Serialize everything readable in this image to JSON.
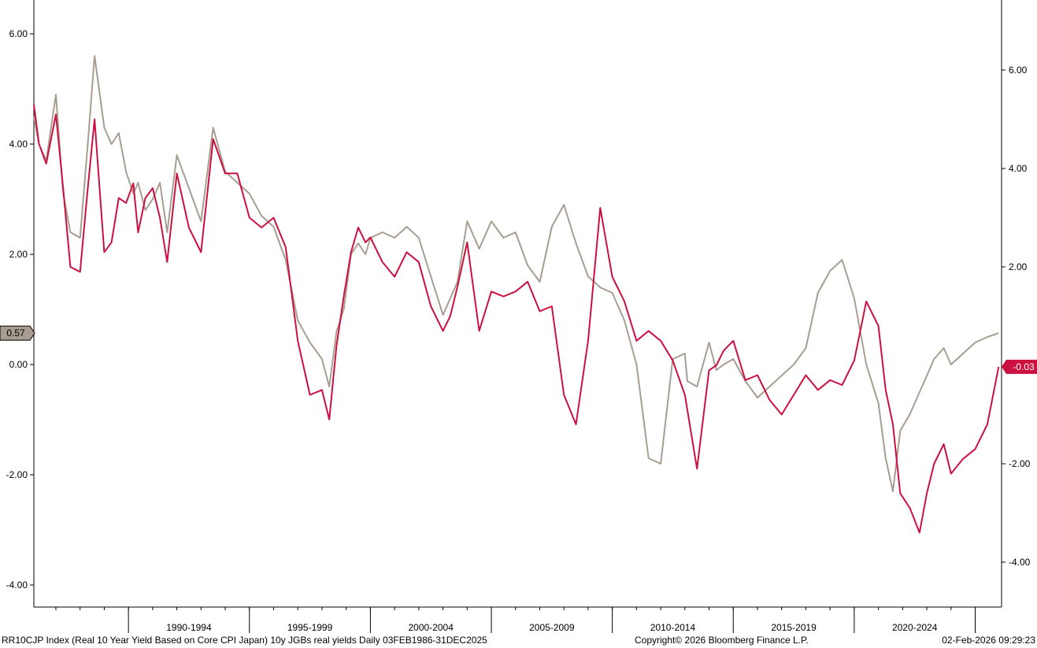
{
  "chart_data": {
    "type": "line",
    "title": "RR10CJP Index (Real 10 Year Yield Based on Core CPI Japan) 10y JGBs real yields Daily 03FEB1986-31DEC2025",
    "x_range": [
      "1986-02-03",
      "2026-02-02"
    ],
    "x_period_labels": [
      "1990-1994",
      "1995-1999",
      "2000-2004",
      "2005-2009",
      "2010-2014",
      "2015-2019",
      "2020-2024"
    ],
    "left_axis": {
      "ylim": [
        -4.3,
        6.6
      ],
      "ticks": [
        "6.00",
        "4.00",
        "2.00",
        "0.00",
        "-2.00",
        "-4.00"
      ]
    },
    "right_axis": {
      "ylim": [
        -4.0,
        7.5
      ],
      "ticks": [
        "6.00",
        "4.00",
        "2.00",
        "-2.00",
        "-4.00"
      ]
    },
    "grid": false,
    "series": [
      {
        "axis": "left",
        "color": "#a89d91",
        "last_value_label": "0.57",
        "last_value": 0.57,
        "x": [
          1986.09,
          1986.3,
          1986.6,
          1987.0,
          1987.3,
          1987.6,
          1988.0,
          1988.3,
          1988.6,
          1989.0,
          1989.3,
          1989.6,
          1989.9,
          1990.2,
          1990.4,
          1990.7,
          1991.0,
          1991.3,
          1991.6,
          1992.0,
          1992.5,
          1993.0,
          1993.5,
          1994.0,
          1994.5,
          1995.0,
          1995.5,
          1996.0,
          1996.5,
          1997.0,
          1997.5,
          1998.0,
          1998.3,
          1998.6,
          1998.9,
          1999.2,
          1999.5,
          1999.8,
          2000.0,
          2000.5,
          2001.0,
          2001.5,
          2002.0,
          2002.5,
          2003.0,
          2003.3,
          2003.6,
          2004.0,
          2004.5,
          2005.0,
          2005.5,
          2006.0,
          2006.5,
          2007.0,
          2007.5,
          2008.0,
          2008.5,
          2009.0,
          2009.5,
          2010.0,
          2010.5,
          2011.0,
          2011.5,
          2012.0,
          2012.5,
          2013.0,
          2013.1,
          2013.5,
          2014.0,
          2014.3,
          2014.6,
          2015.0,
          2015.5,
          2016.0,
          2016.5,
          2017.0,
          2017.5,
          2018.0,
          2018.5,
          2019.0,
          2019.5,
          2020.0,
          2020.5,
          2021.0,
          2021.3,
          2021.6,
          2021.9,
          2022.3,
          2022.7,
          2023.0,
          2023.3,
          2023.7,
          2024.0,
          2024.5,
          2025.0,
          2025.5,
          2025.97
        ],
        "values": [
          4.5,
          4.0,
          3.7,
          4.9,
          3.1,
          2.4,
          2.3,
          3.9,
          5.6,
          4.3,
          4.0,
          4.2,
          3.5,
          3.1,
          3.3,
          2.8,
          3.0,
          3.3,
          2.4,
          3.8,
          3.2,
          2.6,
          4.3,
          3.5,
          3.3,
          3.1,
          2.7,
          2.5,
          1.9,
          0.8,
          0.4,
          0.1,
          -0.4,
          0.6,
          1.0,
          2.0,
          2.2,
          2.0,
          2.3,
          2.4,
          2.3,
          2.5,
          2.3,
          1.6,
          0.9,
          1.2,
          1.5,
          2.6,
          2.1,
          2.6,
          2.3,
          2.4,
          1.8,
          1.5,
          2.5,
          2.9,
          2.2,
          1.6,
          1.4,
          1.3,
          0.8,
          0.0,
          -1.7,
          -1.8,
          0.1,
          0.2,
          -0.3,
          -0.4,
          0.4,
          -0.1,
          0.0,
          0.1,
          -0.3,
          -0.6,
          -0.4,
          -0.2,
          0.0,
          0.3,
          1.3,
          1.7,
          1.9,
          1.2,
          0.0,
          -0.7,
          -1.7,
          -2.3,
          -1.2,
          -0.9,
          -0.5,
          -0.2,
          0.1,
          0.3,
          0.0,
          0.2,
          0.4,
          0.5,
          0.57
        ]
      },
      {
        "axis": "right",
        "color": "#cc1140",
        "last_value_label": "-0.03",
        "last_value": -0.03,
        "x": [
          1986.09,
          1986.3,
          1986.6,
          1987.0,
          1987.3,
          1987.6,
          1988.0,
          1988.3,
          1988.6,
          1989.0,
          1989.3,
          1989.6,
          1989.9,
          1990.2,
          1990.4,
          1990.7,
          1991.0,
          1991.3,
          1991.6,
          1992.0,
          1992.5,
          1993.0,
          1993.5,
          1994.0,
          1994.5,
          1995.0,
          1995.5,
          1996.0,
          1996.5,
          1997.0,
          1997.5,
          1998.0,
          1998.3,
          1998.6,
          1998.9,
          1999.2,
          1999.5,
          1999.8,
          2000.0,
          2000.5,
          2001.0,
          2001.5,
          2002.0,
          2002.5,
          2003.0,
          2003.3,
          2003.6,
          2004.0,
          2004.5,
          2005.0,
          2005.5,
          2006.0,
          2006.5,
          2007.0,
          2007.5,
          2008.0,
          2008.5,
          2009.0,
          2009.5,
          2010.0,
          2010.5,
          2011.0,
          2011.5,
          2012.0,
          2012.5,
          2013.0,
          2013.1,
          2013.5,
          2014.0,
          2014.3,
          2014.6,
          2015.0,
          2015.5,
          2016.0,
          2016.5,
          2017.0,
          2017.5,
          2018.0,
          2018.5,
          2019.0,
          2019.5,
          2020.0,
          2020.5,
          2021.0,
          2021.3,
          2021.6,
          2021.9,
          2022.3,
          2022.7,
          2023.0,
          2023.3,
          2023.7,
          2024.0,
          2024.5,
          2025.0,
          2025.5,
          2025.97
        ],
        "values": [
          5.3,
          4.5,
          4.1,
          5.1,
          3.6,
          2.0,
          1.9,
          3.5,
          5.0,
          2.3,
          2.5,
          3.4,
          3.3,
          3.7,
          2.7,
          3.4,
          3.6,
          3.0,
          2.1,
          3.9,
          2.8,
          2.3,
          4.6,
          3.9,
          3.9,
          3.0,
          2.8,
          3.0,
          2.4,
          0.5,
          -0.6,
          -0.5,
          -1.1,
          0.4,
          1.4,
          2.3,
          2.8,
          2.5,
          2.6,
          2.1,
          1.8,
          2.3,
          2.1,
          1.2,
          0.7,
          1.0,
          1.6,
          2.5,
          0.7,
          1.5,
          1.4,
          1.5,
          1.7,
          1.1,
          1.2,
          -0.6,
          -1.2,
          0.5,
          3.2,
          1.8,
          1.3,
          0.5,
          0.7,
          0.5,
          0.1,
          -0.6,
          -0.9,
          -2.1,
          -0.1,
          0.0,
          0.3,
          0.5,
          -0.3,
          -0.2,
          -0.7,
          -1.0,
          -0.6,
          -0.2,
          -0.5,
          -0.3,
          -0.4,
          0.1,
          1.3,
          0.8,
          -0.5,
          -1.2,
          -2.6,
          -2.9,
          -3.4,
          -2.6,
          -2.0,
          -1.6,
          -2.2,
          -1.9,
          -1.7,
          -1.2,
          -0.03
        ]
      }
    ]
  },
  "footer": {
    "left": "RR10CJP Index (Real 10 Year Yield Based on Core CPI Japan) 10y JGBs real yields Daily 03FEB1986-31DEC2025",
    "center": "Copyright© 2026 Bloomberg Finance L.P.",
    "right": "02-Feb-2026 09:29:23"
  }
}
